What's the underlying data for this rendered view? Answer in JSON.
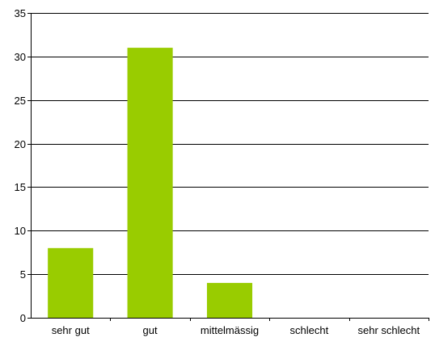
{
  "chart_data": {
    "type": "bar",
    "title": "",
    "xlabel": "",
    "ylabel": "",
    "categories": [
      "sehr gut",
      "gut",
      "mittelmässig",
      "schlecht",
      "sehr schlecht"
    ],
    "values": [
      8,
      31,
      4,
      0,
      0
    ],
    "ylim": [
      0,
      35
    ],
    "yticks": [
      0,
      5,
      10,
      15,
      20,
      25,
      30,
      35
    ],
    "grid": true,
    "legend": "none",
    "bar_color": "#99CC00"
  }
}
